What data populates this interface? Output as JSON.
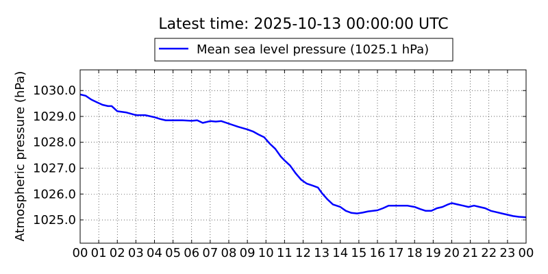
{
  "chart_data": {
    "type": "line",
    "title": "Latest time: 2025-10-13 00:00:00 UTC",
    "ylabel": "Atmospheric pressure (hPa)",
    "xlabel": "",
    "legend": {
      "placement": "top-center, above plot",
      "entries": [
        "Mean sea level pressure (1025.1 hPa)"
      ]
    },
    "grid": true,
    "xlim": [
      0,
      24
    ],
    "ylim": [
      1024.1,
      1030.8
    ],
    "x_ticks": [
      "00",
      "01",
      "02",
      "03",
      "04",
      "05",
      "06",
      "07",
      "08",
      "09",
      "10",
      "11",
      "12",
      "13",
      "14",
      "15",
      "16",
      "17",
      "18",
      "19",
      "20",
      "21",
      "22",
      "23",
      "00"
    ],
    "y_ticks": [
      "1025.0",
      "1026.0",
      "1027.0",
      "1028.0",
      "1029.0",
      "1030.0"
    ],
    "x_tick_values": [
      0,
      1,
      2,
      3,
      4,
      5,
      6,
      7,
      8,
      9,
      10,
      11,
      12,
      13,
      14,
      15,
      16,
      17,
      18,
      19,
      20,
      21,
      22,
      23,
      24
    ],
    "y_tick_values": [
      1025,
      1026,
      1027,
      1028,
      1029,
      1030
    ],
    "series": [
      {
        "name": "Mean sea level pressure (1025.1 hPa)",
        "color": "#0000ff",
        "x": [
          0,
          0.3,
          0.6,
          0.9,
          1.2,
          1.5,
          1.7,
          2,
          2.5,
          3,
          3.5,
          4,
          4.3,
          4.6,
          5,
          5.5,
          6,
          6.3,
          6.6,
          7,
          7.3,
          7.6,
          8,
          8.5,
          9,
          9.3,
          9.6,
          9.9,
          10.2,
          10.5,
          10.8,
          11,
          11.3,
          11.6,
          11.9,
          12.2,
          12.5,
          12.8,
          13,
          13.3,
          13.6,
          14,
          14.3,
          14.6,
          14.9,
          15.2,
          15.5,
          16,
          16.3,
          16.6,
          17,
          17.3,
          17.6,
          18,
          18.3,
          18.6,
          18.9,
          19.2,
          19.5,
          19.8,
          20,
          20.3,
          20.6,
          20.9,
          21.2,
          21.5,
          21.8,
          22.1,
          22.4,
          22.7,
          23,
          23.3,
          23.6,
          24
        ],
        "y": [
          1029.85,
          1029.8,
          1029.65,
          1029.55,
          1029.45,
          1029.4,
          1029.4,
          1029.2,
          1029.15,
          1029.05,
          1029.05,
          1028.97,
          1028.9,
          1028.85,
          1028.85,
          1028.85,
          1028.83,
          1028.85,
          1028.75,
          1028.82,
          1028.8,
          1028.82,
          1028.72,
          1028.6,
          1028.5,
          1028.42,
          1028.3,
          1028.2,
          1027.95,
          1027.75,
          1027.45,
          1027.3,
          1027.1,
          1026.8,
          1026.55,
          1026.4,
          1026.33,
          1026.25,
          1026.05,
          1025.8,
          1025.6,
          1025.5,
          1025.35,
          1025.27,
          1025.25,
          1025.28,
          1025.33,
          1025.37,
          1025.45,
          1025.55,
          1025.55,
          1025.55,
          1025.55,
          1025.5,
          1025.42,
          1025.35,
          1025.35,
          1025.45,
          1025.5,
          1025.6,
          1025.65,
          1025.6,
          1025.55,
          1025.5,
          1025.55,
          1025.5,
          1025.45,
          1025.35,
          1025.3,
          1025.25,
          1025.2,
          1025.15,
          1025.12,
          1025.1
        ]
      }
    ]
  }
}
